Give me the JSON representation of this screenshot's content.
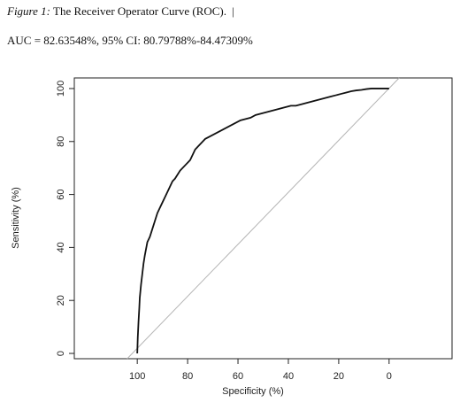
{
  "caption": {
    "figure_label": "Figure 1:",
    "title": "The Receiver Operator Curve (ROC).",
    "cursor": "|"
  },
  "auc_text": "AUC = 82.63548%, 95% CI: 80.79788%-84.47309%",
  "chart_data": {
    "type": "line",
    "xlabel": "Specificity (%)",
    "ylabel": "Sensitivity (%)",
    "xlim": [
      125,
      -25
    ],
    "ylim": [
      -2,
      104
    ],
    "x_reversed": true,
    "x_ticks": [
      100,
      80,
      60,
      40,
      20,
      0
    ],
    "x_tick_labels": [
      "100",
      "80",
      "60",
      "40",
      "20",
      "0"
    ],
    "y_ticks": [
      0,
      20,
      40,
      60,
      80,
      100
    ],
    "y_tick_labels": [
      "0",
      "20",
      "40",
      "60",
      "80",
      "100"
    ],
    "grid": false,
    "reference_line": {
      "x": [
        100,
        0
      ],
      "y": [
        0,
        100
      ],
      "color": "#b4b4b4"
    },
    "series": [
      {
        "color": "#111111",
        "x": [
          100,
          99.8,
          99.5,
          99.2,
          99,
          98.5,
          98,
          97.5,
          97,
          96,
          95,
          94,
          93,
          92,
          91,
          90,
          89,
          88,
          87,
          86,
          85,
          83,
          81,
          79,
          77,
          75,
          73,
          71,
          69,
          67,
          65,
          63,
          61,
          59,
          57,
          55,
          53,
          51,
          49,
          47,
          45,
          43,
          41,
          39,
          37,
          35,
          33,
          31,
          29,
          27,
          25,
          23,
          21,
          19,
          17,
          15,
          13,
          11,
          9,
          7,
          5,
          3,
          1,
          0
        ],
        "y": [
          0,
          6,
          12,
          17,
          21,
          26,
          30,
          34,
          37,
          42,
          44,
          47,
          50,
          53,
          55,
          57,
          59,
          61,
          63,
          65,
          66,
          69,
          71,
          73,
          77,
          79,
          81,
          82,
          83,
          84,
          85,
          86,
          87,
          88,
          88.5,
          89,
          90,
          90.5,
          91,
          91.5,
          92,
          92.5,
          93,
          93.5,
          93.5,
          94,
          94.5,
          95,
          95.5,
          96,
          96.5,
          97,
          97.5,
          98,
          98.5,
          99,
          99.3,
          99.5,
          99.8,
          100,
          100,
          100,
          100,
          100
        ]
      }
    ]
  }
}
